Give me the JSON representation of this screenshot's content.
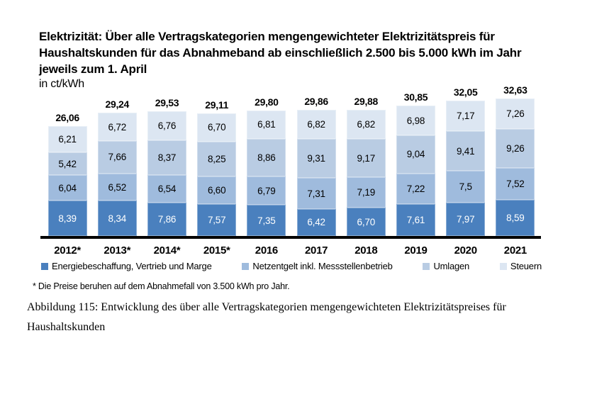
{
  "title": "Elektrizität: Über alle Vertragskategorien mengengewichteter Elektrizitätspreis für\nHaushaltskunden für das Abnahmeband ab einschließlich 2.500 bis 5.000 kWh im Jahr\njeweils zum 1. April",
  "unit_label": "in ct/kWh",
  "footnote": "* Die Preise beruhen auf dem Abnahmefall von 3.500 kWh pro Jahr.",
  "caption": "Abbildung 115: Entwicklung des über alle Vertragskategorien mengengewichteten Elektrizitätspreises für\nHaushaltskunden",
  "chart_data": {
    "type": "bar",
    "stacked": true,
    "title": "Elektrizität: Über alle Vertragskategorien mengengewichteter Elektrizitätspreis für Haushaltskunden für das Abnahmeband ab einschließlich 2.500 bis 5.000 kWh im Jahr jeweils zum 1. April",
    "ylabel": "in ct/kWh",
    "grid": false,
    "legend_position": "bottom",
    "categories": [
      "2012*",
      "2013*",
      "2014*",
      "2015*",
      "2016",
      "2017",
      "2018",
      "2019",
      "2020",
      "2021"
    ],
    "totals": [
      "26,06",
      "29,24",
      "29,53",
      "29,11",
      "29,80",
      "29,86",
      "29,88",
      "30,85",
      "32,05",
      "32,63"
    ],
    "total_values": [
      26.06,
      29.24,
      29.53,
      29.11,
      29.8,
      29.86,
      29.88,
      30.85,
      32.05,
      32.63
    ],
    "series": [
      {
        "name": "Energiebeschaffung, Vertrieb und Marge",
        "color": "#4a80be",
        "label_color": "#ffffff",
        "values": [
          8.39,
          8.34,
          7.86,
          7.57,
          7.35,
          6.42,
          6.7,
          7.61,
          7.97,
          8.59
        ],
        "labels": [
          "8,39",
          "8,34",
          "7,86",
          "7,57",
          "7,35",
          "6,42",
          "6,70",
          "7,61",
          "7,97",
          "8,59"
        ]
      },
      {
        "name": "Netzentgelt inkl. Messstellenbetrieb",
        "color": "#9fbbdd",
        "label_color": "#000000",
        "values": [
          6.04,
          6.52,
          6.54,
          6.6,
          6.79,
          7.31,
          7.19,
          7.22,
          7.5,
          7.52
        ],
        "labels": [
          "6,04",
          "6,52",
          "6,54",
          "6,60",
          "6,79",
          "7,31",
          "7,19",
          "7,22",
          "7,5",
          "7,52"
        ]
      },
      {
        "name": "Umlagen",
        "color": "#b9cce3",
        "label_color": "#000000",
        "values": [
          5.42,
          7.66,
          8.37,
          8.25,
          8.86,
          9.31,
          9.17,
          9.04,
          9.41,
          9.26
        ],
        "labels": [
          "5,42",
          "7,66",
          "8,37",
          "8,25",
          "8,86",
          "9,31",
          "9,17",
          "9,04",
          "9,41",
          "9,26"
        ]
      },
      {
        "name": "Steuern",
        "color": "#dce6f2",
        "label_color": "#000000",
        "values": [
          6.21,
          6.72,
          6.76,
          6.7,
          6.81,
          6.82,
          6.82,
          6.98,
          7.17,
          7.26
        ],
        "labels": [
          "6,21",
          "6,72",
          "6,76",
          "6,70",
          "6,81",
          "6,82",
          "6,82",
          "6,98",
          "7,17",
          "7,26"
        ]
      }
    ]
  }
}
